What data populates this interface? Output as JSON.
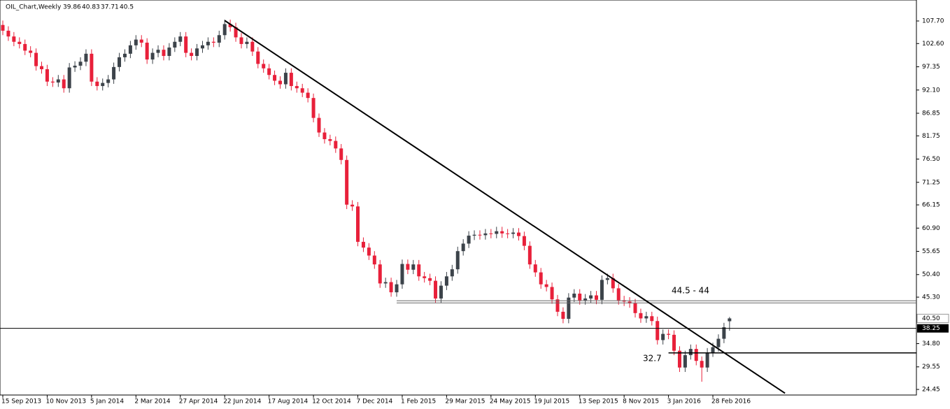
{
  "chart_data": {
    "type": "candlestick",
    "title": "OIL_Chart,Weekly",
    "categories": [
      "15 Sep 2013",
      null,
      null,
      null,
      null,
      null,
      null,
      null,
      "10 Nov 2013",
      null,
      null,
      null,
      null,
      null,
      null,
      null,
      "5 Jan 2014",
      null,
      null,
      null,
      null,
      null,
      null,
      null,
      "2 Mar 2014",
      null,
      null,
      null,
      null,
      null,
      null,
      null,
      "27 Apr 2014",
      null,
      null,
      null,
      null,
      null,
      null,
      null,
      "22 Jun 2014",
      null,
      null,
      null,
      null,
      null,
      null,
      null,
      "17 Aug 2014",
      null,
      null,
      null,
      null,
      null,
      null,
      null,
      "12 Oct 2014",
      null,
      null,
      null,
      null,
      null,
      null,
      null,
      "7 Dec 2014",
      null,
      null,
      null,
      null,
      null,
      null,
      null,
      "1 Feb 2015",
      null,
      null,
      null,
      null,
      null,
      null,
      null,
      "29 Mar 2015",
      null,
      null,
      null,
      null,
      null,
      null,
      null,
      "24 May 2015",
      null,
      null,
      null,
      null,
      null,
      null,
      null,
      "19 Jul 2015",
      null,
      null,
      null,
      null,
      null,
      null,
      null,
      "13 Sep 2015",
      null,
      null,
      null,
      null,
      null,
      null,
      null,
      "8 Nov 2015",
      null,
      null,
      null,
      null,
      null,
      null,
      null,
      "3 Jan 2016",
      null,
      null,
      null,
      null,
      null,
      null,
      null,
      "28 Feb 2016",
      null,
      null,
      null
    ],
    "open": [
      106.8,
      105.5,
      104.2,
      103.0,
      102.5,
      101.0,
      100.5,
      97.5,
      96.8,
      94.0,
      93.8,
      94.5,
      92.5,
      97.2,
      97.6,
      98.5,
      100.3,
      94.0,
      93.0,
      93.7,
      94.5,
      97.3,
      99.5,
      100.3,
      102.2,
      103.5,
      102.8,
      99.0,
      100.5,
      101.2,
      99.8,
      101.7,
      103.0,
      104.2,
      100.5,
      99.8,
      101.5,
      102.2,
      103.0,
      102.8,
      104.5,
      107.0,
      106.3,
      104.0,
      102.5,
      103.0,
      100.8,
      98.0,
      97.0,
      95.5,
      94.2,
      93.4,
      96.0,
      93.0,
      92.5,
      91.5,
      90.3,
      85.8,
      82.5,
      81.0,
      80.6,
      78.9,
      76.3,
      66.2,
      65.8,
      57.8,
      56.5,
      54.7,
      52.7,
      48.4,
      48.7,
      46.4,
      48.2,
      52.8,
      51.5,
      52.7,
      50.0,
      49.6,
      49.0,
      45.0,
      47.9,
      50.0,
      51.6,
      55.7,
      57.4,
      59.2,
      59.4,
      59.3,
      59.7,
      59.6,
      60.2,
      59.7,
      59.6,
      59.9,
      59.1,
      56.9,
      52.7,
      50.9,
      48.2,
      47.6,
      44.8,
      42.0,
      40.4,
      45.2,
      46.1,
      44.6,
      45.0,
      45.7,
      44.7,
      49.2,
      49.6,
      47.3,
      44.6,
      44.3,
      43.9,
      41.7,
      40.5,
      41.0,
      39.9,
      35.6,
      37.0,
      36.8,
      33.2,
      29.4,
      32.2,
      33.6,
      30.9,
      29.4,
      32.8,
      34.0,
      35.9,
      39.86
    ],
    "high": [
      107.8,
      106.5,
      105.2,
      104.0,
      103.5,
      102.0,
      101.5,
      98.5,
      97.8,
      95.0,
      95.5,
      95.5,
      98.2,
      98.6,
      99.5,
      101.3,
      101.3,
      95.0,
      94.7,
      95.5,
      98.3,
      100.5,
      101.3,
      103.2,
      104.5,
      104.5,
      103.8,
      101.5,
      102.2,
      102.2,
      102.7,
      104.0,
      105.2,
      105.2,
      101.5,
      102.5,
      103.2,
      104.0,
      104.0,
      105.5,
      108.0,
      108.0,
      107.3,
      105.0,
      104.0,
      104.0,
      101.8,
      99.0,
      98.0,
      96.5,
      95.2,
      97.0,
      97.0,
      94.0,
      93.5,
      92.5,
      91.3,
      86.8,
      83.5,
      82.0,
      81.6,
      79.9,
      77.3,
      67.2,
      66.8,
      58.8,
      57.5,
      55.7,
      53.7,
      49.7,
      49.7,
      49.2,
      53.8,
      53.8,
      53.7,
      53.7,
      51.0,
      50.6,
      50.0,
      48.9,
      51.0,
      52.6,
      56.7,
      58.4,
      60.2,
      60.4,
      60.4,
      60.7,
      60.7,
      61.2,
      61.2,
      60.7,
      60.9,
      60.9,
      60.1,
      57.9,
      53.7,
      51.9,
      49.2,
      48.6,
      45.8,
      43.0,
      46.2,
      47.1,
      47.1,
      46.0,
      46.7,
      46.7,
      50.2,
      50.6,
      50.6,
      48.3,
      45.6,
      45.3,
      44.9,
      42.7,
      42.0,
      42.0,
      40.9,
      38.0,
      38.0,
      37.8,
      34.2,
      33.2,
      34.6,
      34.6,
      31.9,
      33.8,
      35.0,
      36.9,
      39.5,
      40.83
    ],
    "low": [
      104.5,
      103.2,
      102.0,
      101.5,
      100.0,
      99.5,
      96.5,
      95.8,
      93.0,
      92.8,
      92.8,
      91.5,
      91.5,
      96.2,
      96.6,
      97.5,
      93.0,
      92.0,
      92.0,
      92.7,
      93.5,
      96.3,
      98.5,
      99.3,
      101.2,
      101.8,
      98.0,
      98.0,
      99.5,
      98.8,
      98.8,
      100.7,
      102.0,
      99.5,
      98.8,
      98.8,
      100.5,
      101.2,
      101.8,
      101.8,
      103.5,
      105.3,
      103.0,
      101.5,
      101.5,
      99.8,
      97.0,
      96.0,
      94.5,
      93.2,
      92.4,
      92.4,
      92.0,
      91.5,
      90.5,
      89.3,
      84.8,
      81.5,
      80.0,
      79.6,
      77.9,
      75.3,
      65.2,
      64.8,
      56.8,
      55.5,
      53.7,
      51.7,
      47.4,
      47.4,
      45.4,
      45.4,
      47.2,
      50.5,
      50.5,
      49.0,
      48.6,
      48.0,
      44.0,
      44.0,
      46.9,
      49.0,
      50.6,
      54.7,
      56.4,
      58.2,
      58.3,
      58.3,
      58.6,
      58.6,
      58.7,
      58.6,
      58.6,
      58.1,
      55.9,
      51.7,
      49.9,
      47.2,
      46.6,
      43.8,
      41.0,
      39.4,
      39.4,
      44.2,
      43.6,
      43.6,
      44.0,
      43.7,
      43.7,
      48.2,
      46.3,
      43.6,
      43.3,
      42.9,
      40.7,
      39.5,
      39.5,
      38.9,
      34.6,
      34.6,
      35.8,
      32.2,
      28.4,
      28.4,
      31.2,
      29.9,
      26.2,
      28.4,
      31.8,
      33.0,
      34.9,
      37.71
    ],
    "close": [
      105.5,
      104.2,
      103.0,
      102.5,
      101.0,
      100.5,
      97.5,
      96.8,
      94.0,
      93.8,
      94.5,
      92.5,
      97.2,
      97.6,
      98.5,
      100.3,
      94.0,
      93.0,
      93.7,
      94.5,
      97.3,
      99.5,
      100.3,
      102.2,
      103.5,
      102.8,
      99.0,
      100.5,
      101.2,
      99.8,
      101.7,
      103.0,
      104.2,
      100.5,
      99.8,
      101.5,
      102.2,
      103.0,
      102.8,
      104.5,
      107.0,
      106.3,
      104.0,
      102.5,
      103.0,
      100.8,
      98.0,
      97.0,
      95.5,
      94.2,
      93.4,
      96.0,
      93.0,
      92.5,
      91.5,
      90.3,
      85.8,
      82.5,
      81.0,
      80.6,
      78.9,
      76.3,
      66.2,
      65.8,
      57.8,
      56.5,
      54.7,
      52.7,
      48.4,
      48.7,
      46.4,
      48.2,
      52.8,
      51.5,
      52.7,
      50.0,
      49.6,
      49.0,
      45.0,
      47.9,
      50.0,
      51.6,
      55.7,
      57.4,
      59.2,
      59.4,
      59.3,
      59.7,
      59.6,
      60.2,
      59.7,
      59.6,
      59.9,
      59.1,
      56.9,
      52.7,
      50.9,
      48.2,
      47.6,
      44.8,
      42.0,
      40.4,
      45.2,
      46.1,
      44.6,
      45.0,
      45.7,
      44.7,
      49.2,
      49.6,
      47.3,
      44.6,
      44.3,
      43.9,
      41.7,
      40.5,
      41.0,
      39.9,
      35.6,
      37.0,
      36.8,
      33.2,
      29.4,
      32.2,
      33.6,
      30.9,
      29.4,
      32.8,
      34.0,
      35.9,
      38.5,
      40.5
    ],
    "up_color": "#3c434a",
    "down_color": "#e8203a",
    "ylim": [
      23.19,
      112.44
    ],
    "yticks": [
      {
        "value": 107.7,
        "label": "107.70"
      },
      {
        "value": 102.6,
        "label": "102.60"
      },
      {
        "value": 97.35,
        "label": "97.35"
      },
      {
        "value": 92.1,
        "label": "92.10"
      },
      {
        "value": 86.85,
        "label": "86.85"
      },
      {
        "value": 81.75,
        "label": "81.75"
      },
      {
        "value": 76.5,
        "label": "76.50"
      },
      {
        "value": 71.25,
        "label": "71.25"
      },
      {
        "value": 66.15,
        "label": "66.15"
      },
      {
        "value": 60.9,
        "label": "60.90"
      },
      {
        "value": 55.65,
        "label": "55.65"
      },
      {
        "value": 50.4,
        "label": "50.40"
      },
      {
        "value": 45.3,
        "label": "45.30"
      },
      {
        "value": 34.8,
        "label": "34.80"
      },
      {
        "value": 29.55,
        "label": "29.55"
      },
      {
        "value": 24.45,
        "label": "24.45"
      }
    ],
    "current_price": {
      "value": 40.5,
      "label": "40.50"
    },
    "hlines": [
      {
        "value": 44.5
      },
      {
        "value": 44
      },
      {
        "value": 38.25,
        "label": "38.25"
      },
      {
        "value": 32.7
      }
    ],
    "trendline": {
      "from": [
        40,
        107.8
      ],
      "to": [
        141,
        23.6
      ]
    },
    "annotations": [
      "44.5 - 44",
      "32.7"
    ]
  }
}
